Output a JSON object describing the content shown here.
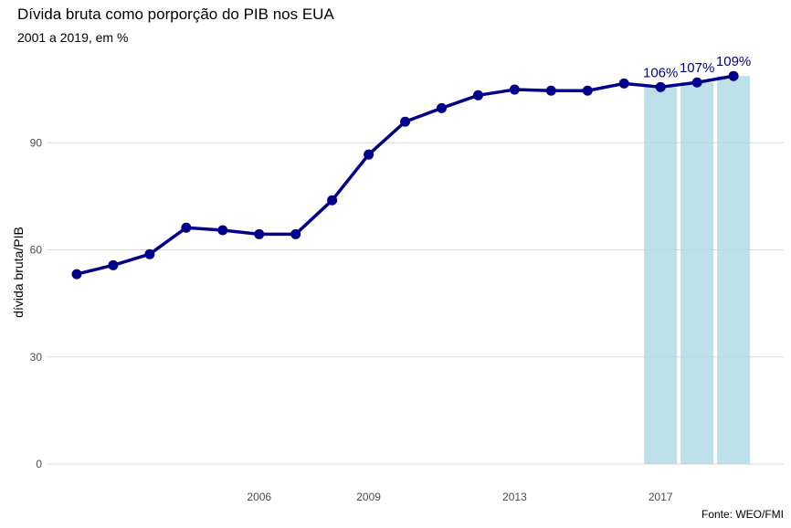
{
  "chart_data": {
    "type": "line",
    "title": "Dívida bruta como porporção do PIB nos EUA",
    "subtitle": "2001 a 2019, em %",
    "caption": "Fonte: WEO/FMI",
    "xlabel": "",
    "ylabel": "dívida bruta/PIB",
    "x": [
      2001,
      2002,
      2003,
      2004,
      2005,
      2006,
      2007,
      2008,
      2009,
      2010,
      2011,
      2012,
      2013,
      2014,
      2015,
      2016,
      2017,
      2018,
      2019
    ],
    "values": [
      53.2,
      55.7,
      58.8,
      66.2,
      65.5,
      64.4,
      64.4,
      73.9,
      86.7,
      95.9,
      99.7,
      103.3,
      104.9,
      104.6,
      104.6,
      106.6,
      105.6,
      106.9,
      108.7
    ],
    "bars": [
      {
        "x": 2017,
        "value": 105.6,
        "label": "106%"
      },
      {
        "x": 2018,
        "value": 106.9,
        "label": "107%"
      },
      {
        "x": 2019,
        "value": 108.7,
        "label": "109%"
      }
    ],
    "xticks": [
      2006,
      2009,
      2013,
      2017
    ],
    "yticks": [
      0,
      30,
      60,
      90
    ],
    "xlim": [
      2000,
      2020.4
    ],
    "ylim": [
      0,
      120
    ],
    "grid": true,
    "colors": {
      "line": "#00008b",
      "bar": "#add8e6",
      "grid": "#d9d9d9",
      "label": "#00008b"
    }
  }
}
